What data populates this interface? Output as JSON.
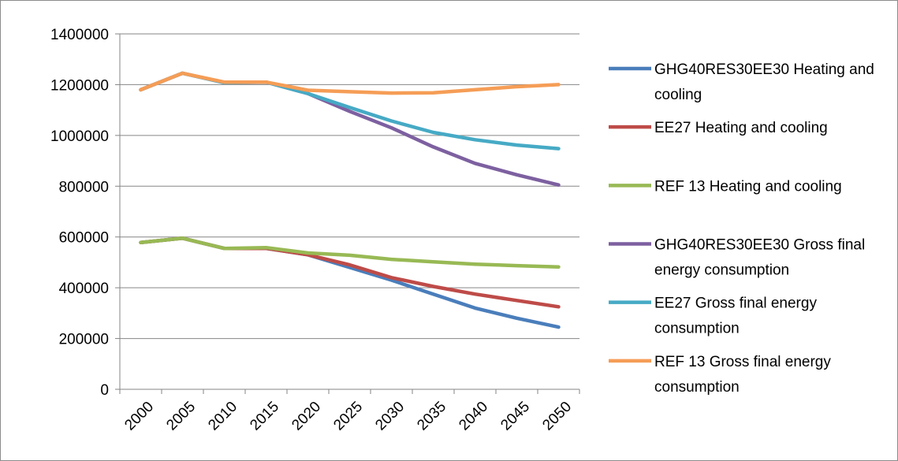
{
  "chart_data": {
    "type": "line",
    "title": "",
    "xlabel": "",
    "ylabel": "",
    "x": [
      "2000",
      "2005",
      "2010",
      "2015",
      "2020",
      "2025",
      "2030",
      "2035",
      "2040",
      "2045",
      "2050"
    ],
    "ylim": [
      0,
      1400000
    ],
    "yticks": [
      "0",
      "200000",
      "400000",
      "600000",
      "800000",
      "1000000",
      "1200000",
      "1400000"
    ],
    "grid": "horizontal",
    "legend_position": "right",
    "series": [
      {
        "name": "GHG40RES30EE30 Heating and cooling",
        "color": "#4a7ebb",
        "values": [
          578000,
          595000,
          555000,
          555000,
          530000,
          480000,
          430000,
          375000,
          320000,
          280000,
          245000
        ]
      },
      {
        "name": "EE27 Heating and cooling",
        "color": "#be4b48",
        "values": [
          578000,
          595000,
          555000,
          555000,
          530000,
          490000,
          440000,
          405000,
          375000,
          350000,
          325000
        ]
      },
      {
        "name": "REF 13 Heating and cooling",
        "color": "#98b954",
        "values": [
          578000,
          595000,
          555000,
          558000,
          537000,
          528000,
          512000,
          502000,
          493000,
          487000,
          482000
        ]
      },
      {
        "name": "GHG40RES30EE30 Gross final energy consumption",
        "color": "#7d60a0",
        "values": [
          1180000,
          1245000,
          1208000,
          1210000,
          1165000,
          1095000,
          1030000,
          955000,
          890000,
          845000,
          805000
        ]
      },
      {
        "name": "EE27 Gross final energy consumption",
        "color": "#46aac5",
        "values": [
          1180000,
          1245000,
          1208000,
          1210000,
          1165000,
          1110000,
          1057000,
          1012000,
          983000,
          962000,
          948000
        ]
      },
      {
        "name": "REF 13 Gross final energy consumption",
        "color": "#f59d56",
        "values": [
          1180000,
          1245000,
          1210000,
          1210000,
          1178000,
          1172000,
          1167000,
          1168000,
          1180000,
          1192000,
          1200000
        ]
      }
    ]
  }
}
